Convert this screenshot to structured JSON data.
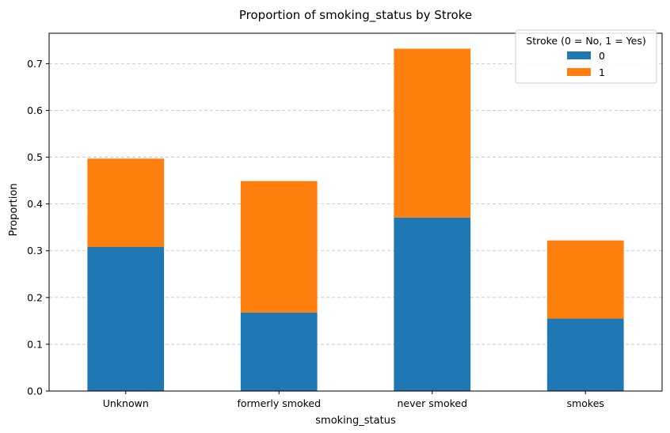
{
  "chart_data": {
    "type": "bar",
    "stacked": true,
    "title": "Proportion of smoking_status by Stroke",
    "xlabel": "smoking_status",
    "ylabel": "Proportion",
    "categories": [
      "Unknown",
      "formerly smoked",
      "never smoked",
      "smokes"
    ],
    "series": [
      {
        "name": "0",
        "color": "#1f77b4",
        "values": [
          0.308,
          0.168,
          0.371,
          0.155
        ]
      },
      {
        "name": "1",
        "color": "#ff7f0e",
        "values": [
          0.189,
          0.281,
          0.361,
          0.167
        ]
      }
    ],
    "ylim": [
      0,
      0.765
    ],
    "yticks": [
      0.0,
      0.1,
      0.2,
      0.3,
      0.4,
      0.5,
      0.6,
      0.7
    ],
    "ytick_labels": [
      "0.0",
      "0.1",
      "0.2",
      "0.3",
      "0.4",
      "0.5",
      "0.6",
      "0.7"
    ],
    "grid": "y-dashed",
    "legend": {
      "title": "Stroke (0 = No, 1 = Yes)",
      "placement": "top-right"
    }
  }
}
